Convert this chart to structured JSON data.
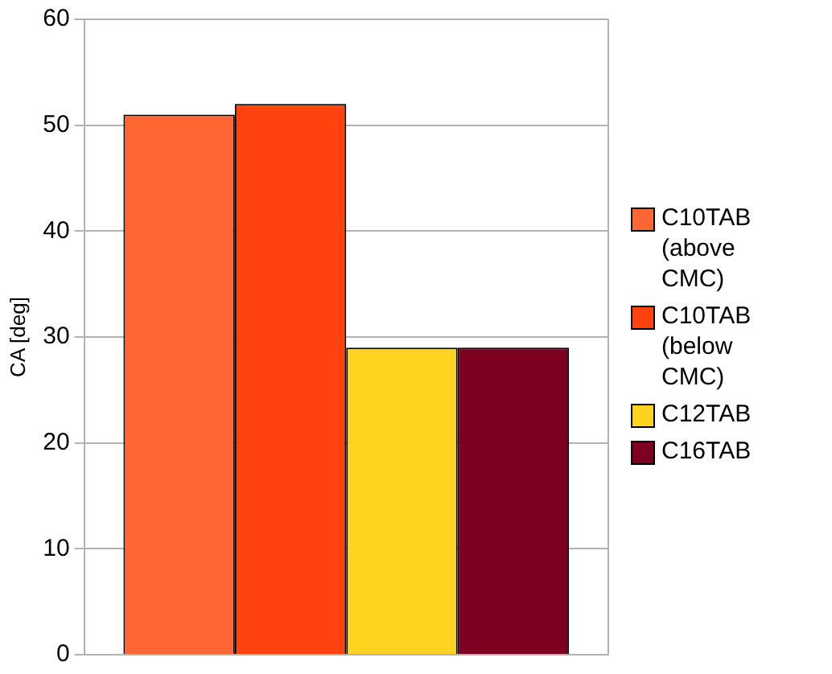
{
  "chart_data": {
    "type": "bar",
    "categories": [
      null
    ],
    "ylabel": "CA [deg]",
    "ylim": [
      0,
      60
    ],
    "yticks": [
      0,
      10,
      20,
      30,
      40,
      50,
      60
    ],
    "grid": "y",
    "legend": "right",
    "series": [
      {
        "name": "C10TAB (above CMC)",
        "color": "#ff6633",
        "values": [
          51
        ]
      },
      {
        "name": "C10TAB (below CMC)",
        "color": "#ff420e",
        "values": [
          52
        ]
      },
      {
        "name": "C12TAB",
        "color": "#ffd320",
        "values": [
          29
        ]
      },
      {
        "name": "C16TAB",
        "color": "#7e0021",
        "values": [
          29
        ]
      }
    ]
  }
}
